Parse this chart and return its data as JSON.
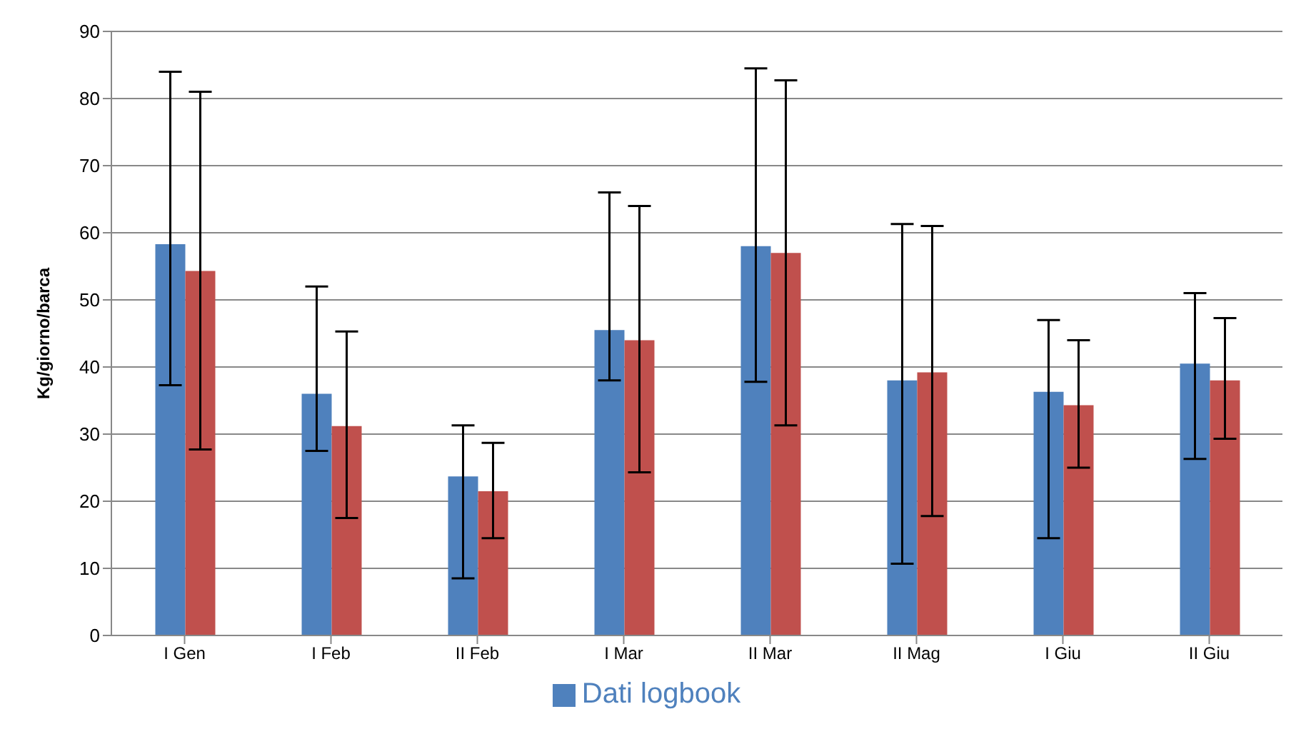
{
  "chart_data": {
    "type": "bar",
    "ylabel": "Kg/giorno/barca",
    "categories": [
      "I Gen",
      "I Feb",
      "II Feb",
      "I Mar",
      "II Mar",
      "II Mag",
      "I Giu",
      "II Giu"
    ],
    "series": [
      {
        "name": "Dati logbook",
        "color": "#4f81bd",
        "values": [
          58.3,
          36,
          23.7,
          45.5,
          58,
          38,
          36.3,
          40.5
        ],
        "errors": [
          [
            37.3,
            84
          ],
          [
            27.5,
            52
          ],
          [
            8.5,
            31.3
          ],
          [
            38,
            66
          ],
          [
            37.8,
            84.5
          ],
          [
            10.7,
            61.3
          ],
          [
            14.5,
            47
          ],
          [
            26.3,
            51
          ]
        ]
      },
      {
        "color": "#c0504d",
        "values": [
          54.3,
          31.2,
          21.5,
          44,
          57,
          39.2,
          34.3,
          38
        ],
        "errors": [
          [
            27.7,
            81
          ],
          [
            17.5,
            45.3
          ],
          [
            14.5,
            28.7
          ],
          [
            24.3,
            64
          ],
          [
            31.3,
            82.7
          ],
          [
            17.8,
            61
          ],
          [
            25,
            44
          ],
          [
            29.3,
            47.3
          ]
        ]
      }
    ],
    "ylim": [
      0,
      90
    ],
    "yticks": [
      0,
      10,
      20,
      30,
      40,
      50,
      60,
      70,
      80,
      90
    ],
    "grid": "y",
    "legend": "bottom"
  }
}
